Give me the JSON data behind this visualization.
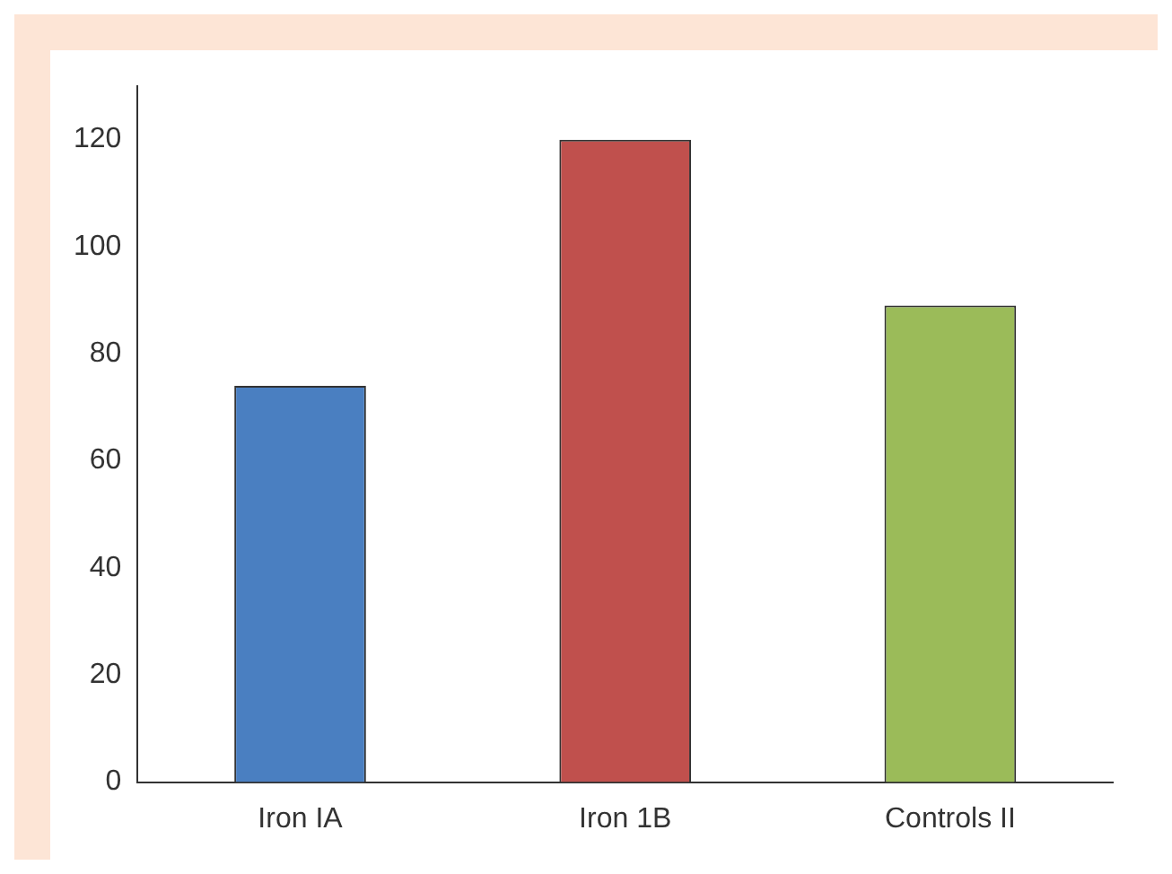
{
  "chart_data": {
    "type": "bar",
    "categories": [
      "Iron IA",
      "Iron 1B",
      "Controls II"
    ],
    "values": [
      74,
      120,
      89
    ],
    "colors": [
      "#4a7fc1",
      "#c0504d",
      "#9bbb59"
    ],
    "ylim": [
      0,
      130
    ],
    "yticks": [
      0,
      20,
      40,
      60,
      80,
      100,
      120
    ],
    "grid": false
  }
}
